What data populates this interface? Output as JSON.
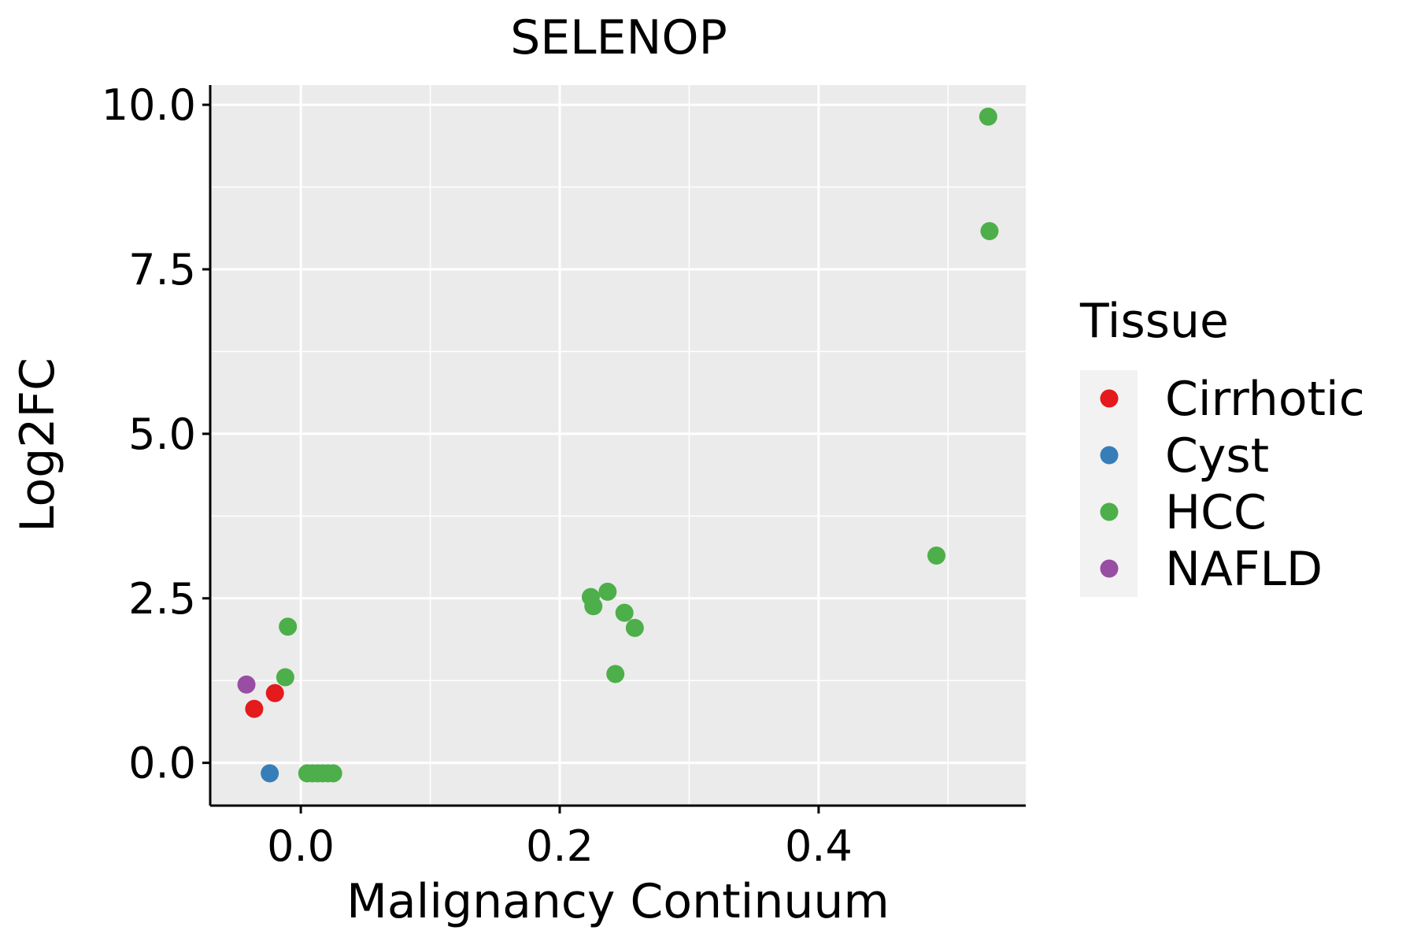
{
  "chart_data": {
    "type": "scatter",
    "title": "SELENOP",
    "xlabel": "Malignancy Continuum",
    "ylabel": "Log2FC",
    "xlim": [
      -0.07,
      0.56
    ],
    "ylim": [
      -0.65,
      10.3
    ],
    "x_ticks": [
      0.0,
      0.2,
      0.4
    ],
    "x_tick_labels": [
      "0.0",
      "0.2",
      "0.4"
    ],
    "y_ticks": [
      0.0,
      2.5,
      5.0,
      7.5,
      10.0
    ],
    "y_tick_labels": [
      "0.0",
      "2.5",
      "5.0",
      "7.5",
      "10.0"
    ],
    "grid": true,
    "legend": {
      "title": "Tissue",
      "position": "right"
    },
    "series": [
      {
        "name": "Cirrhotic",
        "color": "#E41A1C",
        "points": [
          {
            "x": -0.036,
            "y": 0.82
          },
          {
            "x": -0.02,
            "y": 1.06
          }
        ]
      },
      {
        "name": "Cyst",
        "color": "#377EB8",
        "points": [
          {
            "x": -0.024,
            "y": -0.16
          }
        ]
      },
      {
        "name": "HCC",
        "color": "#4DAF4A",
        "points": [
          {
            "x": -0.01,
            "y": 2.07
          },
          {
            "x": -0.012,
            "y": 1.3
          },
          {
            "x": 0.005,
            "y": -0.16
          },
          {
            "x": 0.009,
            "y": -0.16
          },
          {
            "x": 0.013,
            "y": -0.16
          },
          {
            "x": 0.017,
            "y": -0.16
          },
          {
            "x": 0.021,
            "y": -0.16
          },
          {
            "x": 0.025,
            "y": -0.16
          },
          {
            "x": 0.224,
            "y": 2.52
          },
          {
            "x": 0.226,
            "y": 2.38
          },
          {
            "x": 0.237,
            "y": 2.6
          },
          {
            "x": 0.25,
            "y": 2.28
          },
          {
            "x": 0.258,
            "y": 2.05
          },
          {
            "x": 0.243,
            "y": 1.35
          },
          {
            "x": 0.491,
            "y": 3.15
          },
          {
            "x": 0.531,
            "y": 9.82
          },
          {
            "x": 0.532,
            "y": 8.08
          }
        ]
      },
      {
        "name": "NAFLD",
        "color": "#984EA3",
        "points": [
          {
            "x": -0.042,
            "y": 1.19
          }
        ]
      }
    ]
  }
}
